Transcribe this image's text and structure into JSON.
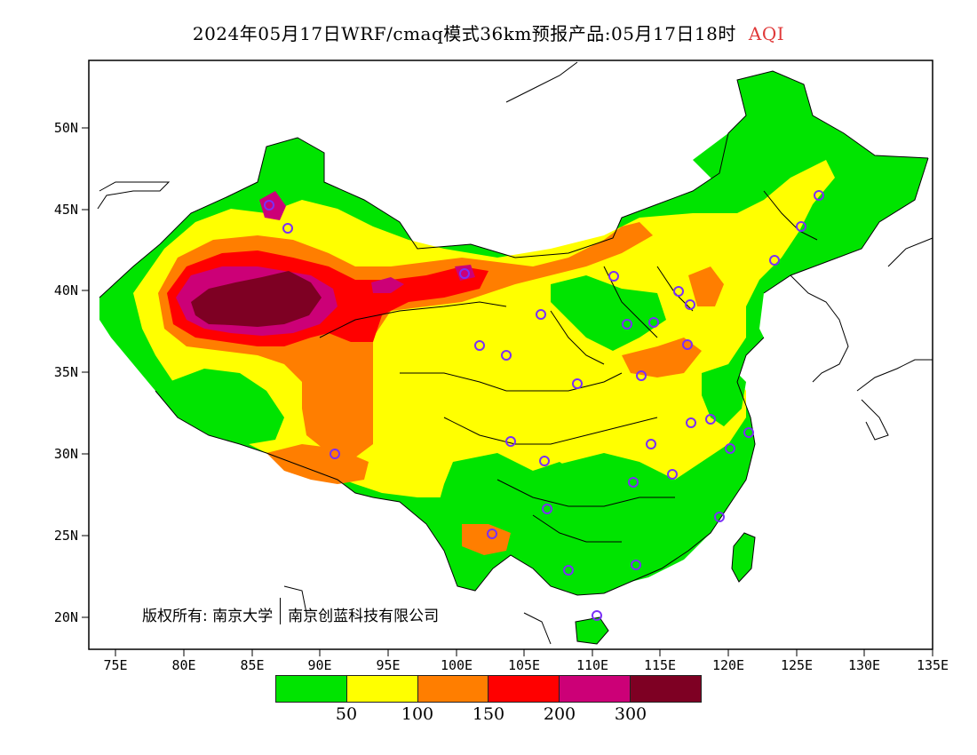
{
  "title": {
    "main": "2024年05月17日WRF/cmaq模式36km预报产品:05月17日18时",
    "variable": "AQI"
  },
  "map": {
    "lat_labels": [
      "50N",
      "45N",
      "40N",
      "35N",
      "30N",
      "25N",
      "20N"
    ],
    "lon_labels": [
      "75E",
      "80E",
      "85E",
      "90E",
      "95E",
      "100E",
      "105E",
      "110E",
      "115E",
      "120E",
      "125E",
      "130E",
      "135E"
    ],
    "colors": {
      "good": "#00e400",
      "moderate": "#ffff00",
      "unhealthy_sensitive": "#ff7e00",
      "unhealthy": "#ff0000",
      "very_unhealthy": "#cc0077",
      "hazardous": "#7e0023",
      "station_marker": "#7b2ff7"
    }
  },
  "copyright": {
    "label": "版权所有:",
    "org1": "南京大学",
    "org2": "南京创蓝科技有限公司"
  },
  "legend": {
    "colors": [
      "#00e400",
      "#ffff00",
      "#ff7e00",
      "#ff0000",
      "#cc0077",
      "#7e0023"
    ],
    "labels": [
      "50",
      "100",
      "150",
      "200",
      "300"
    ]
  }
}
